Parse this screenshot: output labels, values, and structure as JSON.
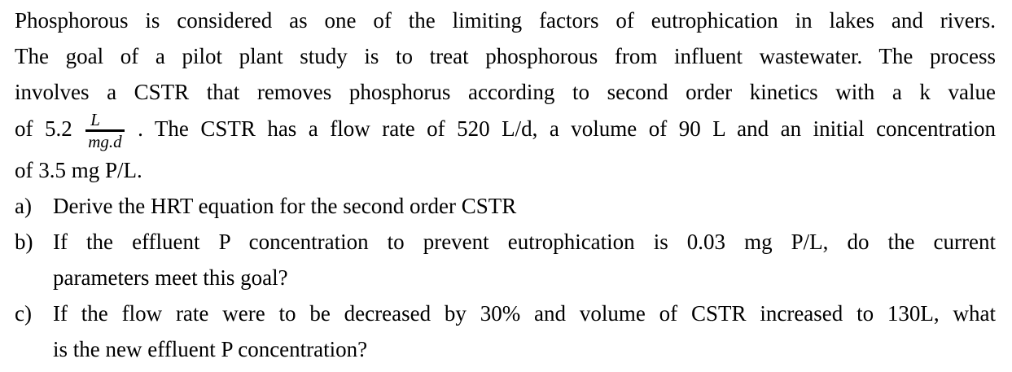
{
  "page": {
    "background_color": "#ffffff",
    "text_color": "#000000"
  },
  "problem": {
    "paragraph": {
      "line1": "Phosphorous is considered as one of the limiting factors of eutrophication in lakes and rivers.",
      "line2": "The goal of a pilot plant study is to treat phosphorous from influent wastewater. The process",
      "line3": "involves a CSTR that removes phosphorus according to second order kinetics with a k value",
      "line4_before": "of 5.2",
      "fraction": {
        "numerator": "L",
        "denominator": "mg.d"
      },
      "line4_after": ". The CSTR has a flow rate of 520 L/d, a volume of 90 L and an initial concentration",
      "line5": "of 3.5 mg P/L."
    },
    "questions": [
      {
        "marker": "a)",
        "lines": [
          "Derive the HRT equation for the second order CSTR"
        ]
      },
      {
        "marker": "b)",
        "lines": [
          "If the effluent P concentration to prevent eutrophication is 0.03 mg P/L, do the current",
          "parameters meet this goal?"
        ]
      },
      {
        "marker": "c)",
        "lines": [
          "If the flow rate were to be decreased by 30% and volume of CSTR increased to 130L, what",
          "is the new effluent P concentration?"
        ]
      }
    ]
  }
}
